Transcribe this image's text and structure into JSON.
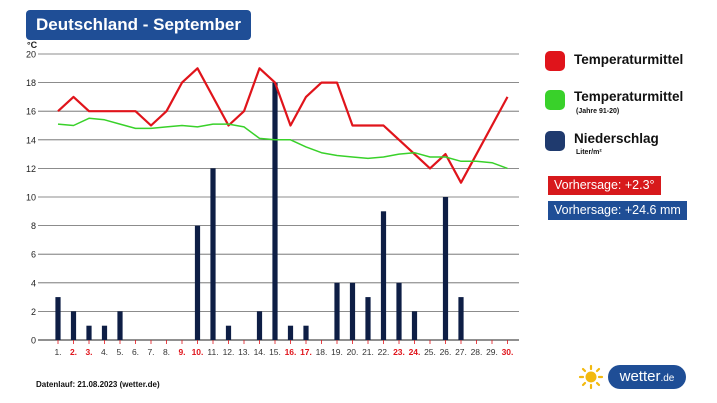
{
  "header": {
    "title": "Deutschland - September"
  },
  "chart_data": {
    "type": "bar+line",
    "ylabel": "°C",
    "ylim": [
      0,
      20
    ],
    "yticks": [
      0,
      2,
      4,
      6,
      8,
      10,
      12,
      14,
      16,
      18,
      20
    ],
    "categories": [
      "1.",
      "2.",
      "3.",
      "4.",
      "5.",
      "6.",
      "7.",
      "8.",
      "9.",
      "10.",
      "11.",
      "12.",
      "13.",
      "14.",
      "15.",
      "16.",
      "17.",
      "18.",
      "19.",
      "20.",
      "21.",
      "22.",
      "23.",
      "24.",
      "25.",
      "26.",
      "27.",
      "28.",
      "29.",
      "30."
    ],
    "weekend_labels": [
      2,
      3,
      9,
      10,
      16,
      17,
      23,
      24,
      30
    ],
    "series": [
      {
        "name": "Niederschlag",
        "kind": "bar",
        "color": "#0e1e45",
        "values": [
          3,
          2,
          1,
          1,
          2,
          0,
          0,
          0,
          0,
          8,
          12,
          1,
          0,
          2,
          18,
          1,
          1,
          0,
          4,
          4,
          3,
          9,
          4,
          2,
          0,
          10,
          3,
          0,
          0,
          0
        ]
      },
      {
        "name": "Temperaturmittel",
        "kind": "line",
        "color": "#e0141b",
        "values": [
          16,
          17,
          16,
          16,
          16,
          16,
          15,
          16,
          18,
          19,
          17,
          15,
          16,
          19,
          18,
          15,
          17,
          18,
          18,
          15,
          15,
          15,
          14,
          13,
          12,
          13,
          11,
          null,
          null,
          17
        ]
      },
      {
        "name": "Temperaturmittel",
        "kind": "line",
        "color": "#39d12a",
        "values": [
          15.1,
          15.0,
          15.5,
          15.4,
          15.1,
          14.8,
          14.8,
          14.9,
          15.0,
          14.9,
          15.1,
          15.1,
          14.9,
          14.1,
          14.0,
          14.0,
          13.5,
          13.1,
          12.9,
          12.8,
          12.7,
          12.8,
          13.0,
          13.1,
          12.8,
          12.8,
          12.5,
          12.5,
          12.4,
          12.0
        ]
      }
    ]
  },
  "legend": [
    {
      "label": "Temperaturmittel",
      "sub": "",
      "color": "#e0141b"
    },
    {
      "label": "Temperaturmittel",
      "sub": "(Jahre 91-20)",
      "color": "#39d12a"
    },
    {
      "label": "Niederschlag",
      "sub": "Liter/m²",
      "color": "#1f3a6e"
    }
  ],
  "badges": [
    {
      "text": "Vorhersage: +2.3°",
      "color": "#d7191c"
    },
    {
      "text": "Vorhersage: +24.6 mm",
      "color": "#1f4e96"
    }
  ],
  "footer": "Datenlauf: 21.08.2023 (wetter.de)",
  "brand": {
    "name": "wetter",
    "suffix": ".de",
    "sun_color": "#f2b90f"
  }
}
